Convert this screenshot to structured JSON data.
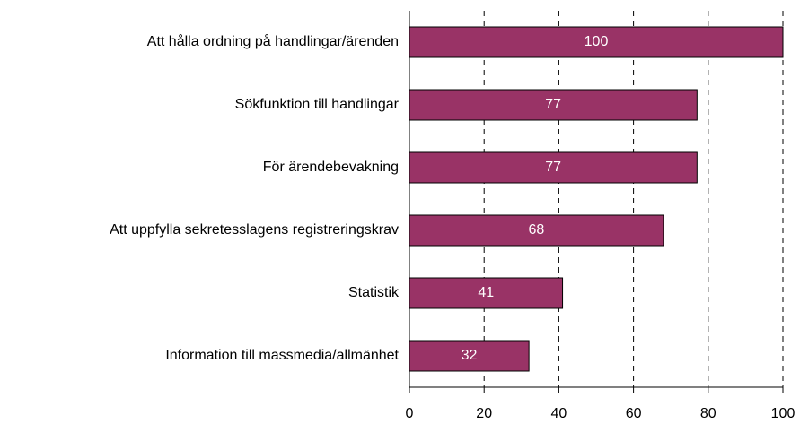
{
  "chart_data": {
    "type": "bar",
    "orientation": "horizontal",
    "categories": [
      "Att hålla ordning på handlingar/ärenden",
      "Sökfunktion till handlingar",
      "För ärendebevakning",
      "Att uppfylla sekretesslagens registreringskrav",
      "Statistik",
      "Information till massmedia/allmänhet"
    ],
    "values": [
      100,
      77,
      77,
      68,
      41,
      32
    ],
    "color": "#993366",
    "xlim": [
      0,
      100
    ],
    "xticks": [
      0,
      20,
      40,
      60,
      80,
      100
    ],
    "grid": true
  }
}
